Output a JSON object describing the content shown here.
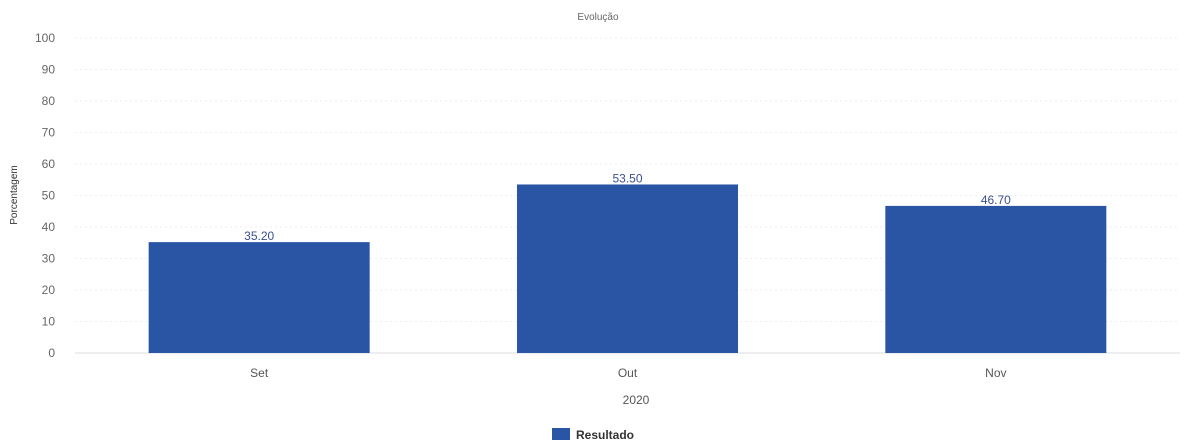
{
  "chart_data": {
    "type": "bar",
    "title": "Evolução",
    "categories": [
      "Set",
      "Out",
      "Nov"
    ],
    "xlabel": "2020",
    "ylabel": "Porcentagem",
    "ylim": [
      0,
      100
    ],
    "yticks": [
      0,
      10,
      20,
      30,
      40,
      50,
      60,
      70,
      80,
      90,
      100
    ],
    "series": [
      {
        "name": "Resultado",
        "values": [
          35.2,
          53.5,
          46.7
        ],
        "labels": [
          "35.20",
          "53.50",
          "46.70"
        ],
        "color": "#2a55a5"
      }
    ],
    "grid": true,
    "legend_position": "bottom-center"
  }
}
